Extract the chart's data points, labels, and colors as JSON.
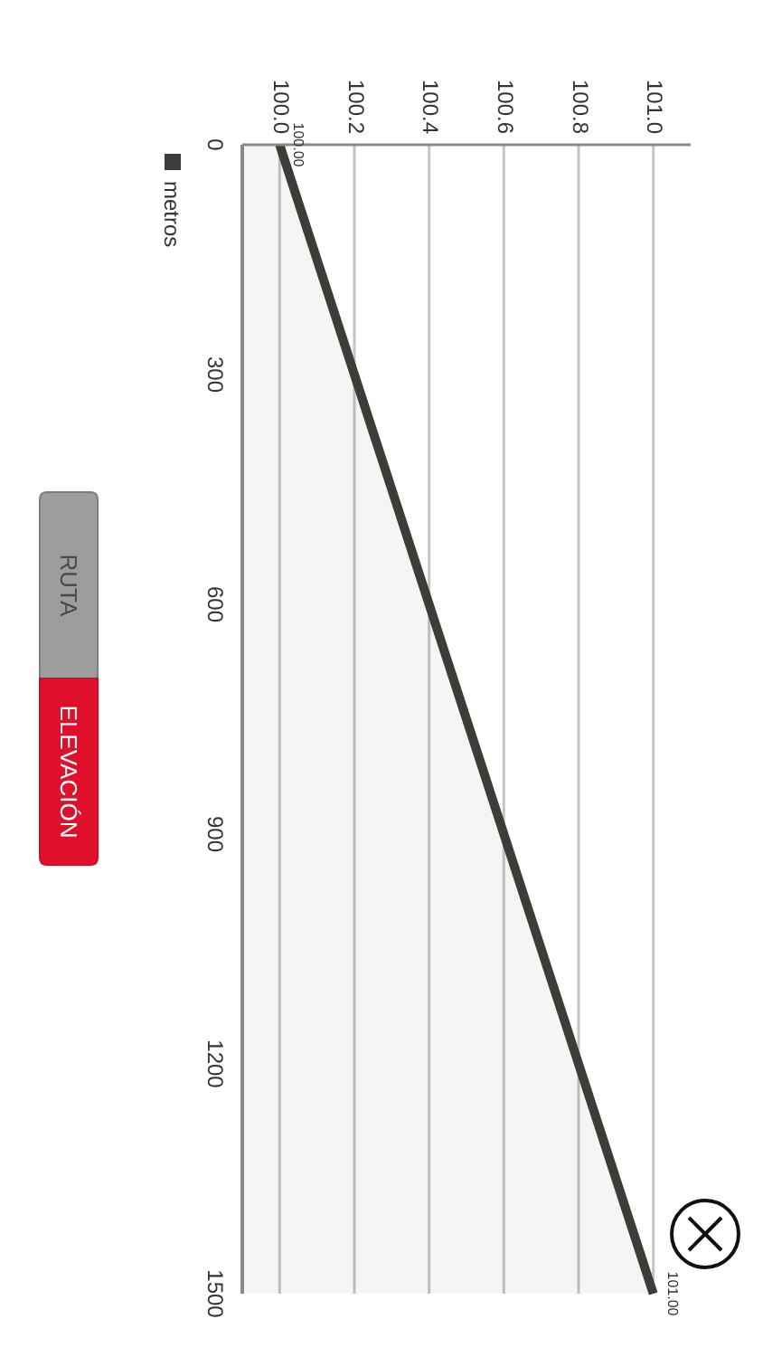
{
  "chart_data": {
    "type": "area",
    "orientation": "horizontal",
    "x": [
      0,
      1500
    ],
    "series": [
      {
        "name": "metros",
        "color": "#3b3d37",
        "values": [
          100.0,
          101.0
        ],
        "value_labels": [
          "100.00",
          "101.00"
        ]
      }
    ],
    "xlim": [
      99.9,
      101.1
    ],
    "xticks": [
      {
        "value": 100,
        "label": "100.0"
      },
      100.2,
      100.4,
      100.6,
      100.8,
      {
        "value": 101,
        "label": "101.0"
      }
    ],
    "ylim": [
      1500,
      0
    ],
    "yticks": [
      0,
      300,
      600,
      900,
      1200,
      1500
    ],
    "grid": "x",
    "legend": "top left",
    "annotations": [
      "RUTA",
      "ELEVACIÓN"
    ]
  }
}
